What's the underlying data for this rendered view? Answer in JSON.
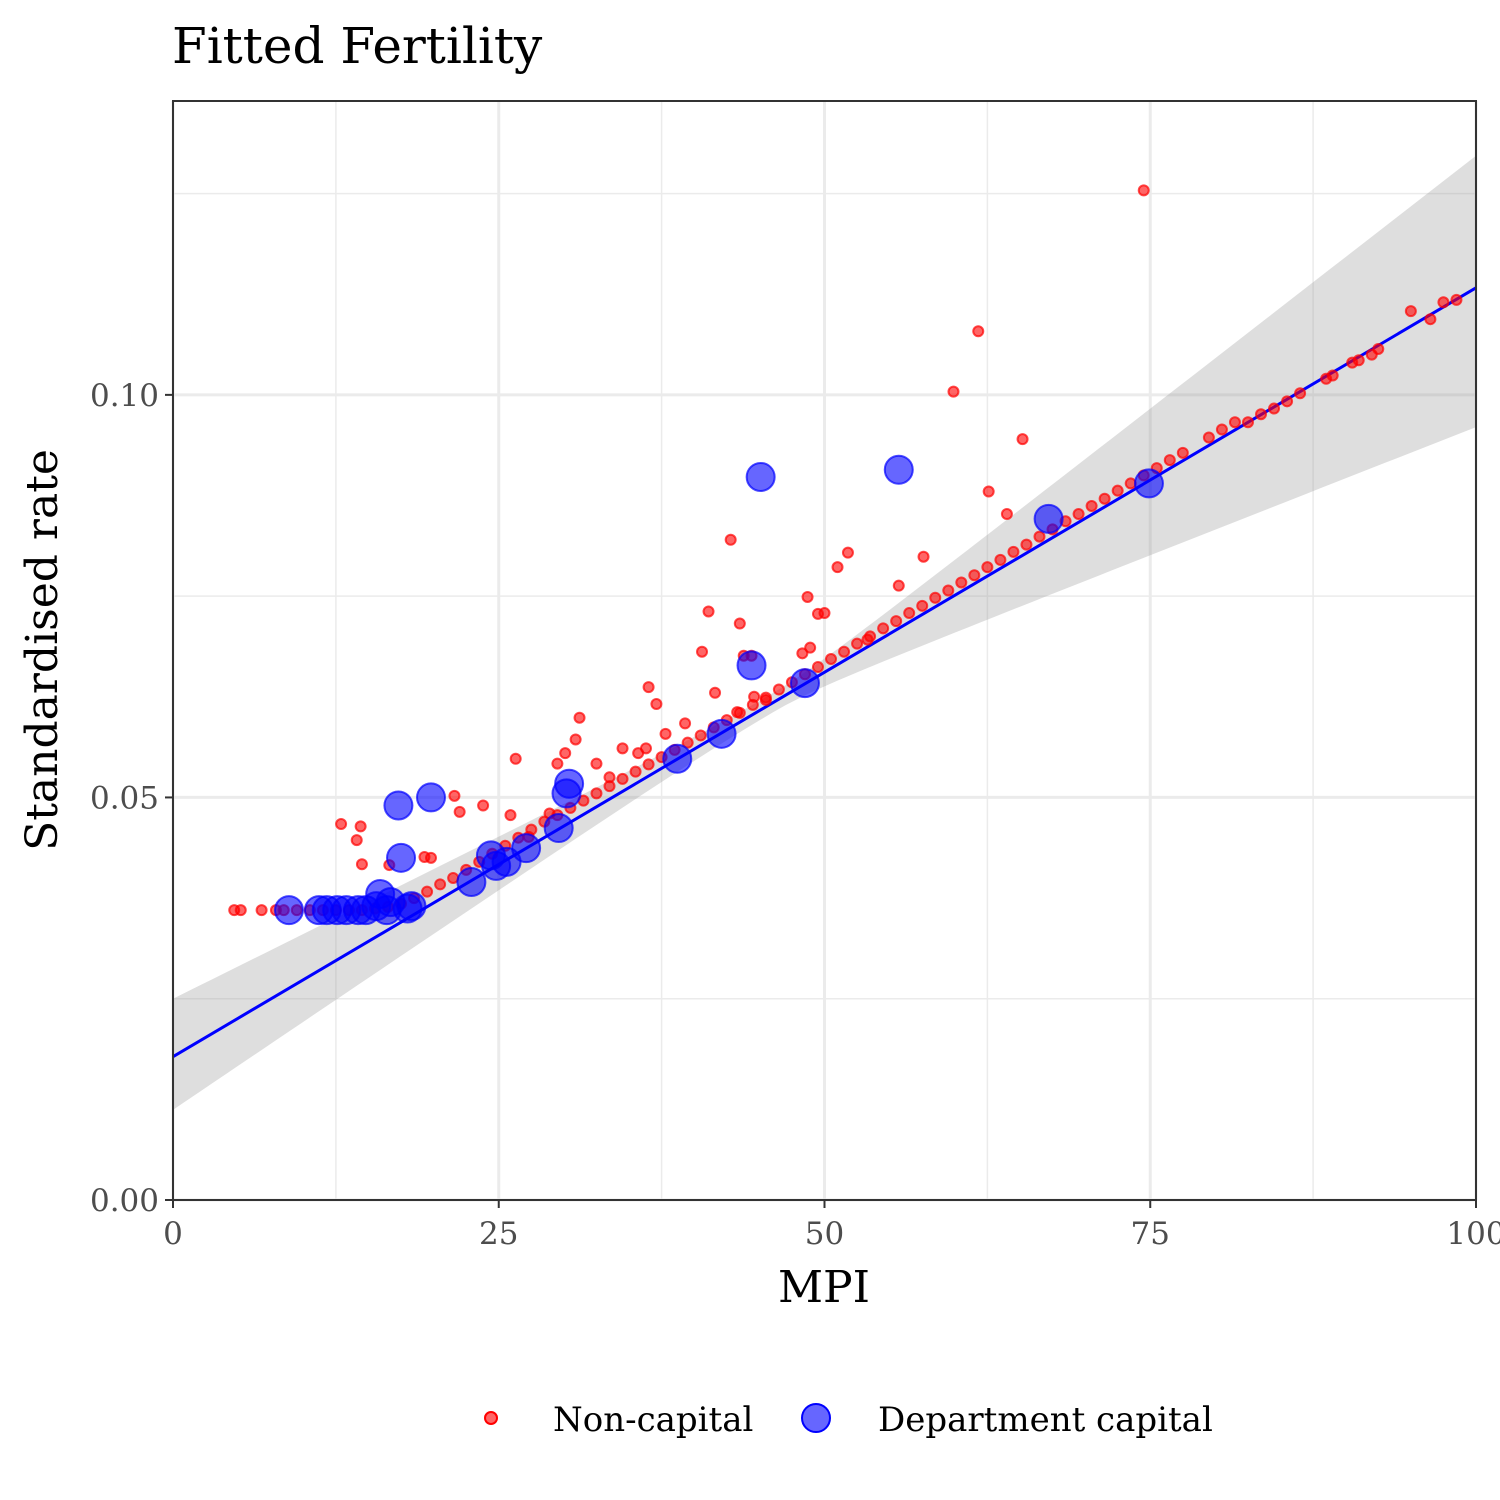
{
  "chart_data": {
    "type": "scatter",
    "title": "Fitted Fertility",
    "xlabel": "MPI",
    "ylabel": "Standardised rate",
    "xlim": [
      0,
      100
    ],
    "ylim": [
      0,
      0.1365
    ],
    "x_ticks": [
      0,
      25,
      50,
      75,
      100
    ],
    "x_tick_labels": [
      "0",
      "25",
      "50",
      "75",
      "100"
    ],
    "y_ticks": [
      0,
      0.05,
      0.1
    ],
    "y_tick_labels": [
      "0.00",
      "0.05",
      "0.10"
    ],
    "grid": true,
    "legend_position": "bottom",
    "fit_line": {
      "color": "#0000ff",
      "x": [
        0,
        100
      ],
      "y": [
        0.0178,
        0.1133
      ],
      "ci_lower": [
        0.0112,
        0.096
      ],
      "ci_upper": [
        0.025,
        0.1297
      ]
    },
    "series": [
      {
        "name": "Non-capital",
        "color": "#ff0000",
        "size": "small",
        "points": [
          [
            4.7,
            0.036
          ],
          [
            5.2,
            0.036
          ],
          [
            6.8,
            0.036
          ],
          [
            7.9,
            0.036
          ],
          [
            8.5,
            0.036
          ],
          [
            9.5,
            0.036
          ],
          [
            10.5,
            0.036
          ],
          [
            11.5,
            0.036
          ],
          [
            12.5,
            0.036
          ],
          [
            13.5,
            0.036
          ],
          [
            14.5,
            0.036
          ],
          [
            15.5,
            0.0362
          ],
          [
            16.5,
            0.0364
          ],
          [
            17.5,
            0.0368
          ],
          [
            18.5,
            0.0375
          ],
          [
            19.5,
            0.0383
          ],
          [
            20.5,
            0.0392
          ],
          [
            21.5,
            0.04
          ],
          [
            22.5,
            0.041
          ],
          [
            23.5,
            0.042
          ],
          [
            24.5,
            0.043
          ],
          [
            25.5,
            0.044
          ],
          [
            26.5,
            0.045
          ],
          [
            27.5,
            0.046
          ],
          [
            28.5,
            0.047
          ],
          [
            29.5,
            0.0478
          ],
          [
            30.5,
            0.0487
          ],
          [
            31.5,
            0.0496
          ],
          [
            32.5,
            0.0505
          ],
          [
            33.5,
            0.0514
          ],
          [
            34.5,
            0.0523
          ],
          [
            35.5,
            0.0532
          ],
          [
            36.5,
            0.0541
          ],
          [
            37.5,
            0.055
          ],
          [
            38.5,
            0.0559
          ],
          [
            39.5,
            0.0568
          ],
          [
            40.5,
            0.0577
          ],
          [
            41.5,
            0.0587
          ],
          [
            42.5,
            0.0596
          ],
          [
            43.5,
            0.0605
          ],
          [
            44.5,
            0.0615
          ],
          [
            45.5,
            0.0624
          ],
          [
            46.5,
            0.0634
          ],
          [
            47.5,
            0.0643
          ],
          [
            48.5,
            0.0653
          ],
          [
            49.5,
            0.0662
          ],
          [
            50.5,
            0.0672
          ],
          [
            51.5,
            0.0681
          ],
          [
            52.5,
            0.0691
          ],
          [
            53.5,
            0.07
          ],
          [
            54.5,
            0.071
          ],
          [
            55.5,
            0.0719
          ],
          [
            56.5,
            0.0729
          ],
          [
            57.5,
            0.0738
          ],
          [
            58.5,
            0.0748
          ],
          [
            59.5,
            0.0757
          ],
          [
            60.5,
            0.0767
          ],
          [
            61.5,
            0.0776
          ],
          [
            62.5,
            0.0786
          ],
          [
            63.5,
            0.0795
          ],
          [
            64.5,
            0.0805
          ],
          [
            65.5,
            0.0814
          ],
          [
            66.5,
            0.0824
          ],
          [
            67.5,
            0.0833
          ],
          [
            68.5,
            0.0843
          ],
          [
            69.5,
            0.0852
          ],
          [
            70.5,
            0.0862
          ],
          [
            71.5,
            0.0871
          ],
          [
            72.5,
            0.0881
          ],
          [
            73.5,
            0.089
          ],
          [
            74.5,
            0.09
          ],
          [
            75.5,
            0.0909
          ],
          [
            76.5,
            0.0919
          ],
          [
            77.5,
            0.0928
          ],
          [
            79.5,
            0.0947
          ],
          [
            80.5,
            0.0957
          ],
          [
            81.5,
            0.0966
          ],
          [
            82.5,
            0.0966
          ],
          [
            83.5,
            0.0976
          ],
          [
            84.5,
            0.0983
          ],
          [
            85.5,
            0.0992
          ],
          [
            86.5,
            0.1002
          ],
          [
            88.5,
            0.102
          ],
          [
            89.0,
            0.1024
          ],
          [
            90.5,
            0.104
          ],
          [
            91.0,
            0.1043
          ],
          [
            92.0,
            0.105
          ],
          [
            92.5,
            0.1057
          ],
          [
            95.0,
            0.1104
          ],
          [
            96.5,
            0.1094
          ],
          [
            97.5,
            0.1115
          ],
          [
            98.5,
            0.1118
          ],
          [
            12.9,
            0.0467
          ],
          [
            14.4,
            0.0464
          ],
          [
            14.5,
            0.0417
          ],
          [
            14.1,
            0.0447
          ],
          [
            16.6,
            0.0416
          ],
          [
            19.3,
            0.0426
          ],
          [
            19.8,
            0.0425
          ],
          [
            21.6,
            0.0502
          ],
          [
            22.0,
            0.0482
          ],
          [
            23.8,
            0.049
          ],
          [
            25.9,
            0.0478
          ],
          [
            26.3,
            0.0548
          ],
          [
            27.3,
            0.0451
          ],
          [
            28.9,
            0.048
          ],
          [
            29.5,
            0.0542
          ],
          [
            30.1,
            0.0555
          ],
          [
            30.9,
            0.0572
          ],
          [
            31.2,
            0.0599
          ],
          [
            32.5,
            0.0542
          ],
          [
            33.5,
            0.0525
          ],
          [
            34.5,
            0.0561
          ],
          [
            35.7,
            0.0555
          ],
          [
            36.3,
            0.0561
          ],
          [
            36.5,
            0.0637
          ],
          [
            37.1,
            0.0616
          ],
          [
            37.8,
            0.0579
          ],
          [
            39.3,
            0.0592
          ],
          [
            40.6,
            0.0681
          ],
          [
            41.1,
            0.0731
          ],
          [
            41.6,
            0.063
          ],
          [
            42.8,
            0.082
          ],
          [
            43.3,
            0.0606
          ],
          [
            43.5,
            0.0716
          ],
          [
            43.8,
            0.0676
          ],
          [
            44.4,
            0.0676
          ],
          [
            44.6,
            0.0625
          ],
          [
            45.5,
            0.0621
          ],
          [
            48.3,
            0.0679
          ],
          [
            48.7,
            0.0749
          ],
          [
            48.9,
            0.0686
          ],
          [
            49.5,
            0.0728
          ],
          [
            50.0,
            0.0729
          ],
          [
            51.0,
            0.0786
          ],
          [
            51.8,
            0.0804
          ],
          [
            53.3,
            0.0696
          ],
          [
            55.7,
            0.0763
          ],
          [
            57.6,
            0.0799
          ],
          [
            59.9,
            0.1004
          ],
          [
            61.8,
            0.1079
          ],
          [
            62.6,
            0.088
          ],
          [
            64.0,
            0.0852
          ],
          [
            65.2,
            0.0945
          ],
          [
            74.5,
            0.1254
          ]
        ]
      },
      {
        "name": "Department capital",
        "color": "#0000ff",
        "size": "large",
        "points": [
          [
            8.9,
            0.036
          ],
          [
            11.2,
            0.036
          ],
          [
            11.8,
            0.036
          ],
          [
            12.6,
            0.036
          ],
          [
            13.3,
            0.036
          ],
          [
            14.2,
            0.036
          ],
          [
            14.8,
            0.036
          ],
          [
            15.6,
            0.0365
          ],
          [
            15.9,
            0.038
          ],
          [
            16.4,
            0.036
          ],
          [
            16.7,
            0.037
          ],
          [
            17.3,
            0.049
          ],
          [
            17.5,
            0.0425
          ],
          [
            18.0,
            0.0362
          ],
          [
            18.3,
            0.0365
          ],
          [
            19.8,
            0.05
          ],
          [
            22.9,
            0.0395
          ],
          [
            24.4,
            0.0428
          ],
          [
            24.8,
            0.0415
          ],
          [
            25.6,
            0.042
          ],
          [
            27.1,
            0.0437
          ],
          [
            29.6,
            0.0462
          ],
          [
            30.2,
            0.0505
          ],
          [
            30.4,
            0.0517
          ],
          [
            38.7,
            0.0548
          ],
          [
            42.1,
            0.0579
          ],
          [
            44.4,
            0.0664
          ],
          [
            45.1,
            0.0898
          ],
          [
            48.5,
            0.0642
          ],
          [
            55.7,
            0.0907
          ],
          [
            67.2,
            0.0846
          ],
          [
            74.9,
            0.089
          ]
        ]
      }
    ]
  }
}
